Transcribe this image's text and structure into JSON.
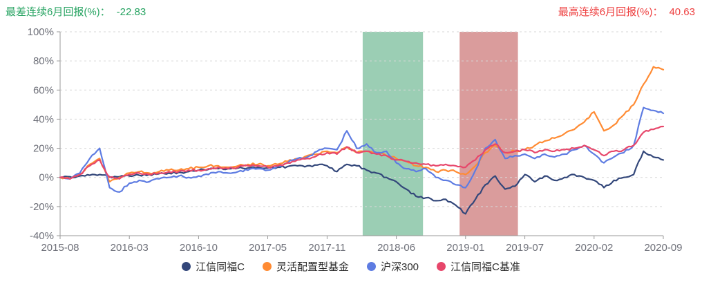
{
  "header": {
    "worst_label": "最差连续6月回报(%)：",
    "worst_value": "-22.83",
    "worst_color": "#26a361",
    "best_label": "最高连续6月回报(%)：",
    "best_value": "40.63",
    "best_color": "#ee3f3f"
  },
  "chart_data": {
    "type": "line",
    "title": "",
    "xlabel": "",
    "ylabel": "",
    "x_unit": "month",
    "x_start": "2015-08",
    "x_end": "2020-09",
    "ylim": [
      -40,
      100
    ],
    "y_tick_step": 20,
    "y_ticks": [
      "100%",
      "80%",
      "60%",
      "40%",
      "20%",
      "0%",
      "-20%",
      "-40%"
    ],
    "x_tick_labels": [
      "2015-08",
      "2016-03",
      "2016-10",
      "2017-05",
      "2017-11",
      "2018-06",
      "2019-01",
      "2019-07",
      "2020-02",
      "2020-09"
    ],
    "x_tick_months": [
      0,
      7,
      14,
      21,
      27,
      34,
      41,
      47,
      54,
      61
    ],
    "grid": "horizontal-dashed",
    "legend_position": "bottom-center",
    "axis_color": "#999999",
    "grid_color": "#d7d7d7",
    "bands": [
      {
        "key": "worst-window",
        "note": "worst 6-month window",
        "from_month": 30.6,
        "to_month": 36.7,
        "color": "#9bceb4"
      },
      {
        "key": "best-window",
        "note": "best 6-month window",
        "from_month": 40.4,
        "to_month": 46.3,
        "color": "#da9c9c"
      }
    ],
    "series": [
      {
        "key": "fund",
        "name": "江信同福C",
        "color": "#33477a",
        "values": [
          0,
          0.5,
          1,
          1.5,
          2,
          0.5,
          0.5,
          1,
          1.5,
          2,
          2.5,
          3,
          3.5,
          4,
          5,
          5.5,
          6,
          6,
          6.5,
          6.5,
          7,
          6.5,
          7,
          7.5,
          8,
          8,
          8.5,
          8,
          4,
          9,
          8,
          5,
          3,
          0,
          -3,
          -8,
          -13,
          -14,
          -16,
          -15,
          -19,
          -25,
          -15,
          -5,
          1,
          -8,
          -6,
          2,
          -3,
          1,
          -2,
          0,
          2,
          0,
          -2,
          -7,
          -2,
          0,
          2,
          18,
          14,
          12
        ]
      },
      {
        "key": "category-avg",
        "name": "灵活配置型基金",
        "color": "#ff8b33",
        "values": [
          0,
          -1,
          2,
          9,
          13,
          -3,
          0,
          3,
          4,
          3,
          4,
          5,
          5,
          6,
          7,
          8,
          8,
          7,
          8,
          9,
          9,
          8,
          9,
          11,
          13,
          15,
          16,
          18,
          17,
          21,
          17,
          18,
          17,
          15,
          13,
          11,
          8,
          7,
          4,
          5,
          4,
          2,
          8,
          17,
          22,
          17,
          18,
          19,
          22,
          25,
          27,
          30,
          33,
          38,
          45,
          32,
          36,
          43,
          50,
          64,
          76,
          74
        ]
      },
      {
        "key": "hs300",
        "name": "沪深300",
        "color": "#5e7ce2",
        "values": [
          0,
          -1,
          3,
          13,
          20,
          -7,
          -10,
          -4,
          -2,
          -3,
          -1,
          0,
          1,
          0,
          1,
          2,
          4,
          3,
          4,
          5,
          6,
          5,
          8,
          10,
          13,
          14,
          18,
          20,
          19,
          32,
          20,
          23,
          17,
          18,
          10,
          6,
          4,
          6,
          0,
          -2,
          -5,
          -7,
          5,
          20,
          26,
          13,
          15,
          16,
          13,
          16,
          14,
          16,
          19,
          22,
          16,
          10,
          14,
          17,
          22,
          48,
          46,
          44
        ]
      },
      {
        "key": "benchmark",
        "name": "江信同福C基准",
        "color": "#e7476b",
        "values": [
          0,
          -1,
          2,
          8,
          12,
          0,
          -1,
          2,
          3,
          2,
          3,
          4,
          4,
          5,
          5,
          6,
          7,
          6,
          7,
          8,
          8,
          7,
          8,
          10,
          12,
          13,
          15,
          17,
          16,
          21,
          17,
          18,
          16,
          15,
          12,
          11,
          10,
          9,
          8,
          9,
          8,
          7,
          12,
          19,
          23,
          17,
          18,
          19,
          17,
          19,
          18,
          19,
          20,
          22,
          19,
          15,
          18,
          19,
          22,
          31,
          33,
          35
        ]
      }
    ]
  }
}
